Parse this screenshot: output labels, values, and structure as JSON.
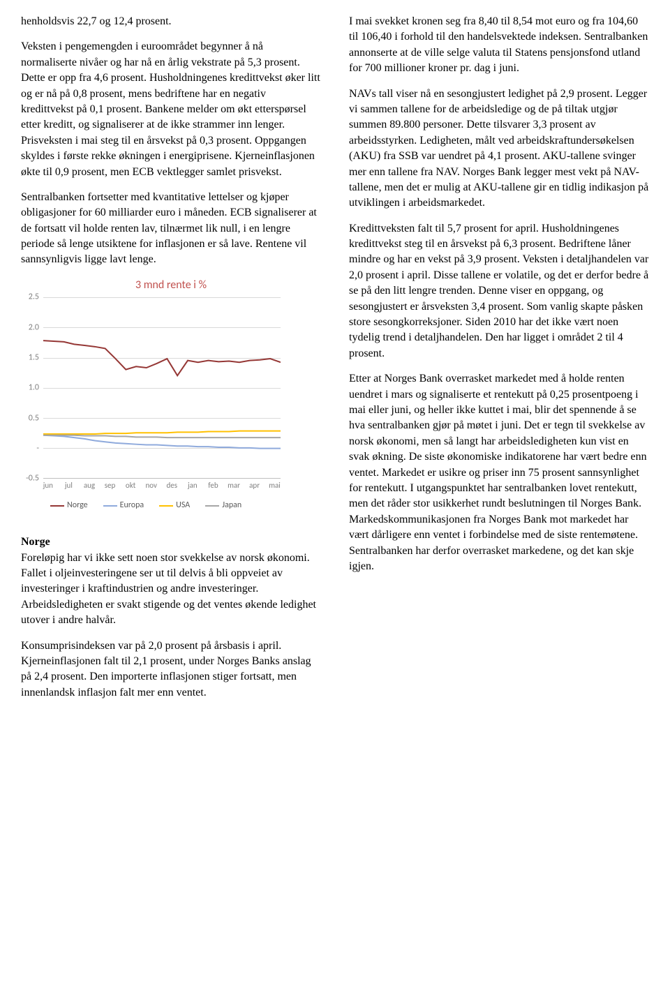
{
  "left": {
    "p1": "henholdsvis 22,7 og 12,4 prosent.",
    "p2": "Veksten i pengemengden i euroområdet begynner å nå normaliserte nivåer og har nå en årlig vekstrate på 5,3 prosent. Dette er opp fra 4,6 prosent. Husholdningenes kredittvekst øker litt og er nå på 0,8 prosent, mens bedriftene har en negativ kredittvekst på 0,1 prosent. Bankene melder om økt etterspørsel etter kreditt, og signaliserer at de ikke strammer inn lenger. Prisveksten i mai steg til en årsvekst på 0,3 prosent. Oppgangen skyldes i første rekke økningen i energiprisene. Kjerneinflasjonen økte til 0,9 prosent, men ECB vektlegger samlet prisvekst.",
    "p3": "Sentralbanken fortsetter med kvantitative lettelser og kjøper obligasjoner for 60 milliarder euro i måneden. ECB signaliserer at de fortsatt vil holde renten lav, tilnærmet lik null, i en lengre periode så lenge utsiktene for inflasjonen er så lave. Rentene vil sannsynligvis ligge lavt lenge.",
    "norge_heading": "Norge",
    "p4": "Foreløpig har vi ikke sett noen stor svekkelse av norsk økonomi. Fallet i oljeinvesteringene ser ut til delvis å bli oppveiet av investeringer i kraftindustrien og andre investeringer. Arbeidsledigheten er svakt stigende og det ventes økende ledighet utover i andre halvår.",
    "p5": "Konsumprisindeksen var på 2,0 prosent på årsbasis i april. Kjerneinflasjonen falt til 2,1 prosent, under Norges Banks anslag på 2,4 prosent. Den importerte inflasjonen stiger fortsatt, men innenlandsk inflasjon falt mer enn ventet."
  },
  "right": {
    "p1": "I mai svekket kronen seg fra 8,40 til 8,54 mot euro og fra 104,60 til 106,40 i forhold til den handelsvektede indeksen. Sentralbanken annonserte at de ville selge valuta til Statens pensjonsfond utland for 700 millioner kroner pr. dag i juni.",
    "p2": "NAVs tall viser nå en sesongjustert ledighet på 2,9 prosent. Legger vi sammen tallene for de arbeidsledige og de på tiltak utgjør summen 89.800 personer. Dette tilsvarer 3,3 prosent av arbeidsstyrken. Ledigheten, målt ved arbeidskraftundersøkelsen (AKU) fra SSB var uendret på 4,1 prosent. AKU-tallene svinger mer enn tallene fra NAV. Norges Bank legger mest vekt på NAV-tallene, men det er mulig at AKU-tallene gir en tidlig indikasjon på utviklingen i arbeidsmarkedet.",
    "p3": "Kredittveksten falt til 5,7 prosent for april. Husholdningenes kredittvekst steg til en årsvekst på 6,3 prosent. Bedriftene låner mindre og har en vekst på 3,9 prosent. Veksten i detaljhandelen var 2,0 prosent i april. Disse tallene er volatile, og det er derfor bedre å se på den litt lengre trenden. Denne viser en oppgang, og sesongjustert er årsveksten 3,4 prosent. Som vanlig skapte påsken store sesongkorreksjoner. Siden 2010 har det ikke vært noen tydelig trend i detaljhandelen. Den har ligget i området 2 til 4 prosent.",
    "p4": "Etter at Norges Bank overrasket markedet med å holde renten uendret i mars og signaliserte et rentekutt på 0,25 prosentpoeng i mai eller juni, og heller ikke kuttet i mai, blir det spennende å se hva sentralbanken gjør på møtet i juni. Det er tegn til svekkelse av norsk økonomi, men så langt har arbeidsledigheten kun vist en svak økning. De siste økonomiske indikatorene har vært bedre enn ventet. Markedet er usikre og priser inn 75 prosent sannsynlighet for rentekutt. I utgangspunktet har sentralbanken lovet rentekutt, men det råder stor usikkerhet rundt beslutningen til Norges Bank. Markedskommunikasjonen fra Norges Bank mot markedet har vært dårligere enn ventet i forbindelse med de siste rentemøtene. Sentralbanken har derfor overrasket markedene, og det kan skje igjen."
  },
  "chart": {
    "type": "line",
    "title": "3 mnd rente i %",
    "title_color": "#c0504d",
    "title_fontsize": 16,
    "background_color": "#ffffff",
    "grid_color": "#d9d9d9",
    "axis_color": "#bfbfbf",
    "label_color": "#7f7f7f",
    "label_fontsize": 12,
    "ylim": [
      -0.5,
      2.5
    ],
    "ytick_step": 0.5,
    "yticks": [
      "-0.5",
      "-",
      "0.5",
      "1.0",
      "1.5",
      "2.0",
      "2.5"
    ],
    "x_labels": [
      "jun",
      "jul",
      "aug",
      "sep",
      "okt",
      "nov",
      "des",
      "jan",
      "feb",
      "mar",
      "apr",
      "mai"
    ],
    "series": [
      {
        "name": "Norge",
        "color": "#953735",
        "width": 2,
        "values": [
          1.78,
          1.77,
          1.76,
          1.72,
          1.7,
          1.68,
          1.65,
          1.48,
          1.3,
          1.35,
          1.33,
          1.4,
          1.48,
          1.2,
          1.45,
          1.42,
          1.45,
          1.43,
          1.44,
          1.42,
          1.45,
          1.46,
          1.48,
          1.42
        ]
      },
      {
        "name": "Europa",
        "color": "#8faadc",
        "width": 2,
        "values": [
          0.21,
          0.2,
          0.19,
          0.17,
          0.15,
          0.12,
          0.1,
          0.08,
          0.07,
          0.06,
          0.05,
          0.05,
          0.04,
          0.03,
          0.03,
          0.02,
          0.02,
          0.01,
          0.01,
          0.0,
          0.0,
          -0.01,
          -0.01,
          -0.01
        ]
      },
      {
        "name": "USA",
        "color": "#ffc000",
        "width": 2,
        "values": [
          0.23,
          0.23,
          0.23,
          0.23,
          0.23,
          0.23,
          0.24,
          0.24,
          0.24,
          0.25,
          0.25,
          0.25,
          0.25,
          0.26,
          0.26,
          0.26,
          0.27,
          0.27,
          0.27,
          0.28,
          0.28,
          0.28,
          0.28,
          0.28
        ]
      },
      {
        "name": "Japan",
        "color": "#a6a6a6",
        "width": 2,
        "values": [
          0.21,
          0.21,
          0.21,
          0.21,
          0.2,
          0.2,
          0.2,
          0.19,
          0.19,
          0.18,
          0.18,
          0.18,
          0.17,
          0.17,
          0.17,
          0.17,
          0.17,
          0.17,
          0.17,
          0.17,
          0.17,
          0.17,
          0.17,
          0.17
        ]
      }
    ],
    "legend_labels": [
      "Norge",
      "Europa",
      "USA",
      "Japan"
    ],
    "legend_colors": [
      "#953735",
      "#8faadc",
      "#ffc000",
      "#a6a6a6"
    ]
  }
}
